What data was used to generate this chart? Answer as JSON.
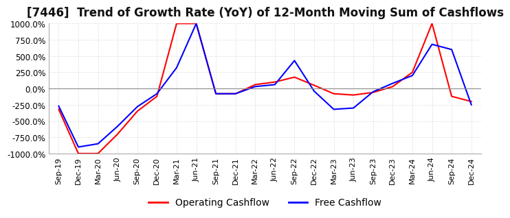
{
  "title": "[7446]  Trend of Growth Rate (YoY) of 12-Month Moving Sum of Cashflows",
  "title_fontsize": 12,
  "ylim": [
    -1000,
    1000
  ],
  "yticks": [
    1000,
    750,
    500,
    250,
    0,
    -250,
    -500,
    -750,
    -1000
  ],
  "ytick_labels": [
    "1000.0%",
    "750.0%",
    "500.0%",
    "250.0%",
    "0.0%",
    "-250.0%",
    "-500.0%",
    "-750.0%",
    "-1000.0%"
  ],
  "background_color": "#ffffff",
  "plot_bg_color": "#ffffff",
  "grid_color": "#cccccc",
  "operating_color": "#ff0000",
  "free_color": "#0000ff",
  "legend_labels": [
    "Operating Cashflow",
    "Free Cashflow"
  ],
  "x_labels": [
    "Sep-19",
    "Dec-19",
    "Mar-20",
    "Jun-20",
    "Sep-20",
    "Dec-20",
    "Mar-21",
    "Jun-21",
    "Sep-21",
    "Dec-21",
    "Mar-22",
    "Jun-22",
    "Sep-22",
    "Dec-22",
    "Mar-23",
    "Jun-23",
    "Sep-23",
    "Dec-23",
    "Mar-24",
    "Jun-24",
    "Sep-24",
    "Dec-24"
  ],
  "operating_cashflow": [
    -320,
    -1000,
    -1000,
    -700,
    -350,
    -120,
    1000,
    1000,
    -80,
    -80,
    60,
    100,
    175,
    50,
    -80,
    -100,
    -60,
    30,
    250,
    1000,
    -120,
    -200
  ],
  "free_cashflow": [
    -270,
    -900,
    -850,
    -580,
    -280,
    -80,
    320,
    1000,
    -80,
    -80,
    30,
    60,
    430,
    -40,
    -320,
    -300,
    -50,
    80,
    200,
    680,
    600,
    -250
  ]
}
